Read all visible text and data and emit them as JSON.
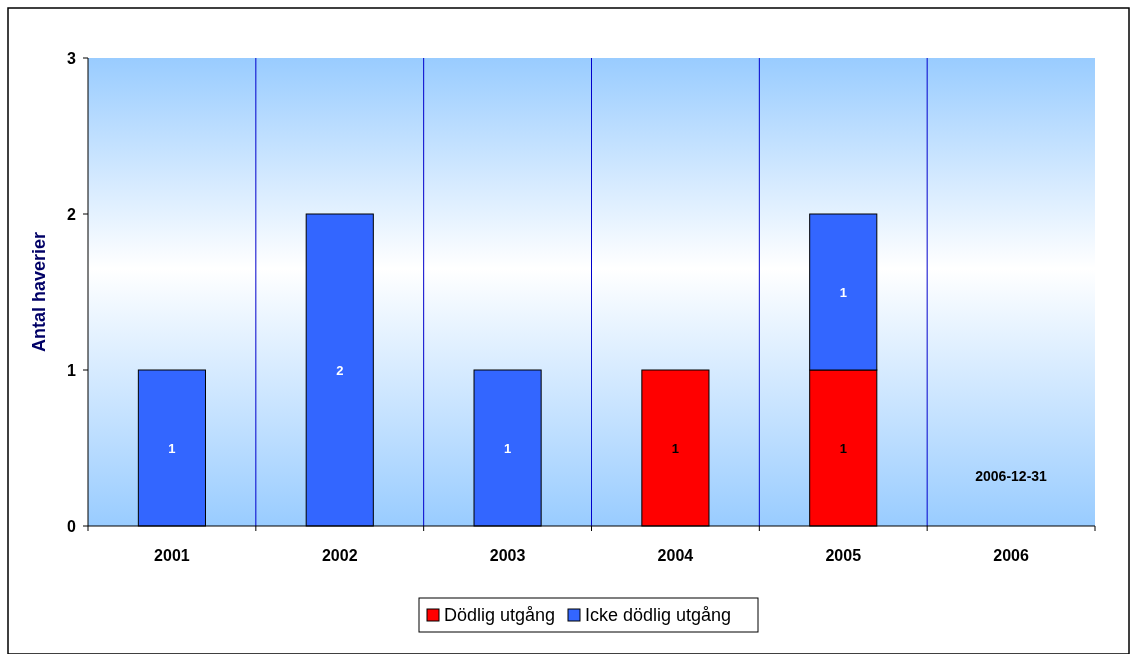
{
  "chart_data": {
    "type": "bar",
    "stacked": true,
    "ylabel": "Antal haverier",
    "categories": [
      "2001",
      "2002",
      "2003",
      "2004",
      "2005",
      "2006"
    ],
    "series": [
      {
        "name": "Dödlig utgång",
        "color": "#ff0000",
        "values": [
          null,
          null,
          null,
          1,
          1,
          null
        ],
        "value_labels": [
          null,
          null,
          null,
          "1",
          "1",
          null
        ]
      },
      {
        "name": "Icke dödlig utgång",
        "color": "#3366ff",
        "values": [
          1,
          2,
          1,
          null,
          1,
          null
        ],
        "value_labels": [
          "1",
          "2",
          "1",
          null,
          "1",
          null
        ]
      }
    ],
    "ylim": [
      0,
      3
    ],
    "yticks": [
      0,
      1,
      2,
      3
    ],
    "grid": "x",
    "legend": "bottom",
    "annotations": [
      "2006-12-31"
    ]
  }
}
